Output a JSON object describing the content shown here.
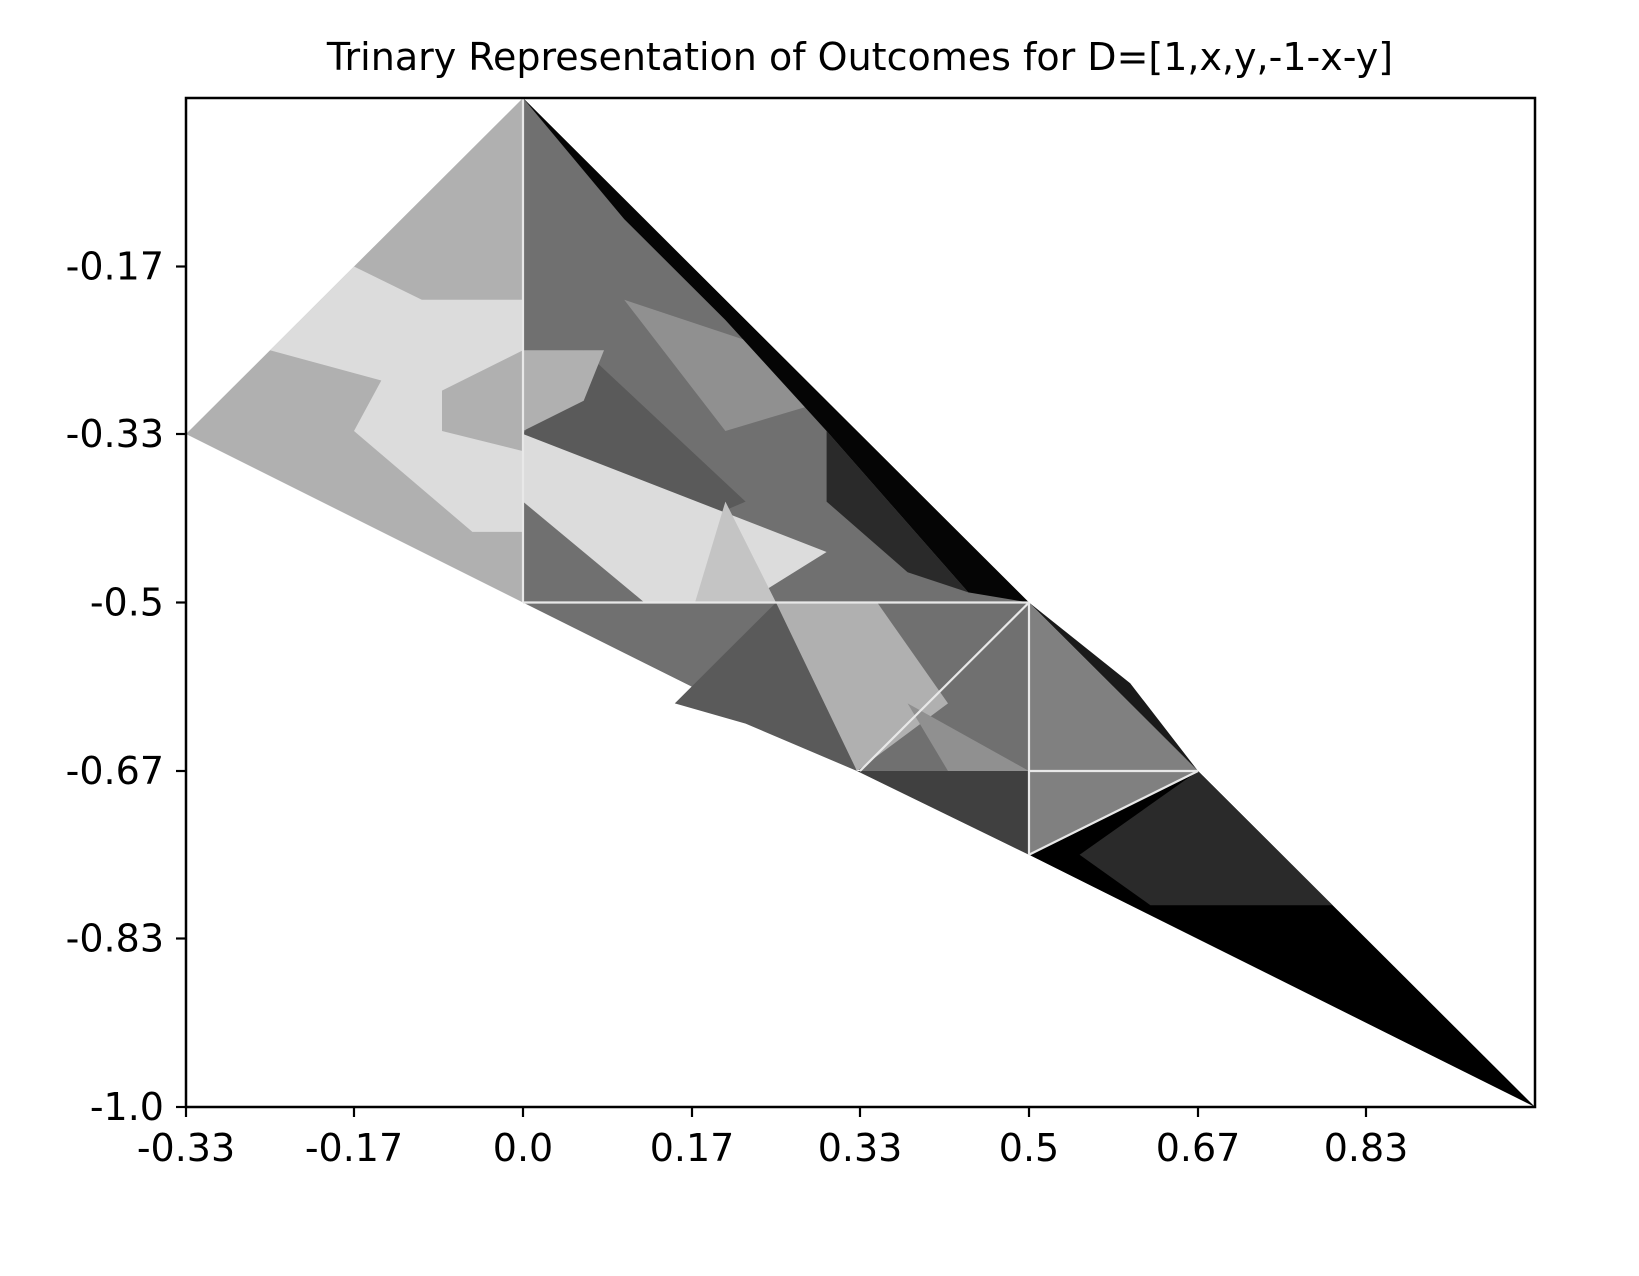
{
  "chart_data": {
    "type": "heatmap",
    "title": "Trinary Representation of Outcomes for D=[1,x,y,-1-x-y]",
    "xlabel": "",
    "ylabel": "",
    "xlim": [
      -0.333,
      1.0
    ],
    "ylim": [
      -1.0,
      0.0
    ],
    "x_ticks": [
      {
        "value": -0.333,
        "label": "-0.33"
      },
      {
        "value": -0.167,
        "label": "-0.17"
      },
      {
        "value": 0.0,
        "label": "0.0"
      },
      {
        "value": 0.167,
        "label": "0.17"
      },
      {
        "value": 0.333,
        "label": "0.33"
      },
      {
        "value": 0.5,
        "label": "0.5"
      },
      {
        "value": 0.667,
        "label": "0.67"
      },
      {
        "value": 0.833,
        "label": "0.83"
      }
    ],
    "y_ticks": [
      {
        "value": -0.167,
        "label": "-0.17"
      },
      {
        "value": -0.333,
        "label": "-0.33"
      },
      {
        "value": -0.5,
        "label": "-0.5"
      },
      {
        "value": -0.667,
        "label": "-0.67"
      },
      {
        "value": -0.833,
        "label": "-0.83"
      },
      {
        "value": -1.0,
        "label": "-1.0"
      }
    ],
    "grid": false,
    "colormap": "grayscale",
    "regions": [
      {
        "name": "left-outer",
        "gray": "#b0b0b0",
        "points": [
          [
            0,
            0
          ],
          [
            -0.333,
            -0.333
          ],
          [
            0,
            -0.5
          ]
        ]
      },
      {
        "name": "left-light-band",
        "gray": "#dcdcdc",
        "points": [
          [
            -0.167,
            -0.167
          ],
          [
            -0.25,
            -0.25
          ],
          [
            -0.14,
            -0.28
          ],
          [
            -0.167,
            -0.33
          ],
          [
            -0.05,
            -0.43
          ],
          [
            0,
            -0.43
          ],
          [
            0,
            -0.35
          ],
          [
            -0.08,
            -0.33
          ],
          [
            -0.08,
            -0.29
          ],
          [
            0,
            -0.25
          ],
          [
            0,
            -0.2
          ],
          [
            -0.1,
            -0.2
          ]
        ]
      },
      {
        "name": "center-mid",
        "gray": "#707070",
        "points": [
          [
            0,
            0
          ],
          [
            0.5,
            -0.5
          ],
          [
            0,
            -0.5
          ]
        ]
      },
      {
        "name": "center-dark-wedge",
        "gray": "#5a5a5a",
        "points": [
          [
            0,
            -0.333
          ],
          [
            0.06,
            -0.25
          ],
          [
            0.22,
            -0.4
          ],
          [
            0.15,
            -0.43
          ]
        ]
      },
      {
        "name": "center-light-lower",
        "gray": "#dcdcdc",
        "points": [
          [
            0,
            -0.333
          ],
          [
            0.3,
            -0.45
          ],
          [
            0.22,
            -0.5
          ],
          [
            0.12,
            -0.5
          ],
          [
            0,
            -0.4
          ]
        ]
      },
      {
        "name": "center-light-right",
        "gray": "#c4c4c4",
        "points": [
          [
            0.2,
            -0.4
          ],
          [
            0.25,
            -0.5
          ],
          [
            0.17,
            -0.5
          ]
        ]
      },
      {
        "name": "upper-mid-gray",
        "gray": "#909090",
        "points": [
          [
            0.1,
            -0.2
          ],
          [
            0.25,
            -0.25
          ],
          [
            0.3,
            -0.3
          ],
          [
            0.2,
            -0.33
          ]
        ]
      },
      {
        "name": "upper-light-shard",
        "gray": "#b0b0b0",
        "points": [
          [
            0,
            -0.25
          ],
          [
            0.08,
            -0.25
          ],
          [
            0.06,
            -0.3
          ],
          [
            0,
            -0.33
          ]
        ]
      },
      {
        "name": "right-black-edge",
        "gray": "#050505",
        "points": [
          [
            0,
            0
          ],
          [
            0.5,
            -0.5
          ],
          [
            0.44,
            -0.49
          ],
          [
            0.3,
            -0.33
          ],
          [
            0.2,
            -0.22
          ],
          [
            0.1,
            -0.12
          ]
        ]
      },
      {
        "name": "right-dark-cluster",
        "gray": "#2a2a2a",
        "points": [
          [
            0.3,
            -0.33
          ],
          [
            0.44,
            -0.49
          ],
          [
            0.38,
            -0.47
          ],
          [
            0.3,
            -0.4
          ]
        ]
      },
      {
        "name": "lower-mid",
        "gray": "#707070",
        "points": [
          [
            0,
            -0.5
          ],
          [
            0.5,
            -0.5
          ],
          [
            0.5,
            -0.75
          ]
        ]
      },
      {
        "name": "lower-dark-wedge",
        "gray": "#5a5a5a",
        "points": [
          [
            0.15,
            -0.6
          ],
          [
            0.25,
            -0.5
          ],
          [
            0.33,
            -0.667
          ],
          [
            0.22,
            -0.62
          ]
        ]
      },
      {
        "name": "lower-light-band",
        "gray": "#b0b0b0",
        "points": [
          [
            0.25,
            -0.5
          ],
          [
            0.35,
            -0.5
          ],
          [
            0.42,
            -0.6
          ],
          [
            0.33,
            -0.667
          ]
        ]
      },
      {
        "name": "lower-mid-light",
        "gray": "#909090",
        "points": [
          [
            0.38,
            -0.6
          ],
          [
            0.5,
            -0.667
          ],
          [
            0.42,
            -0.667
          ]
        ]
      },
      {
        "name": "lower-dark-right",
        "gray": "#404040",
        "points": [
          [
            0.33,
            -0.667
          ],
          [
            0.5,
            -0.667
          ],
          [
            0.5,
            -0.75
          ]
        ]
      },
      {
        "name": "bottom-right-gray",
        "gray": "#808080",
        "points": [
          [
            0.5,
            -0.5
          ],
          [
            0.667,
            -0.667
          ],
          [
            0.5,
            -0.75
          ]
        ]
      },
      {
        "name": "bottom-right-dark",
        "gray": "#1a1a1a",
        "points": [
          [
            0.5,
            -0.5
          ],
          [
            0.667,
            -0.667
          ],
          [
            0.6,
            -0.58
          ]
        ]
      },
      {
        "name": "far-right-black",
        "gray": "#000000",
        "points": [
          [
            0.5,
            -0.75
          ],
          [
            0.667,
            -0.667
          ],
          [
            1.0,
            -1.0
          ]
        ]
      },
      {
        "name": "far-right-dark",
        "gray": "#2a2a2a",
        "points": [
          [
            0.55,
            -0.75
          ],
          [
            0.667,
            -0.667
          ],
          [
            0.8,
            -0.8
          ],
          [
            0.62,
            -0.8
          ]
        ]
      }
    ],
    "separators": [
      {
        "from": [
          0,
          0
        ],
        "to": [
          0,
          -0.5
        ]
      },
      {
        "from": [
          0,
          -0.5
        ],
        "to": [
          0.5,
          -0.5
        ]
      },
      {
        "from": [
          0.5,
          -0.5
        ],
        "to": [
          0.333,
          -0.667
        ]
      },
      {
        "from": [
          0.5,
          -0.5
        ],
        "to": [
          0.5,
          -0.75
        ]
      },
      {
        "from": [
          0.5,
          -0.667
        ],
        "to": [
          0.667,
          -0.667
        ]
      },
      {
        "from": [
          0.667,
          -0.667
        ],
        "to": [
          0.5,
          -0.75
        ]
      }
    ]
  }
}
